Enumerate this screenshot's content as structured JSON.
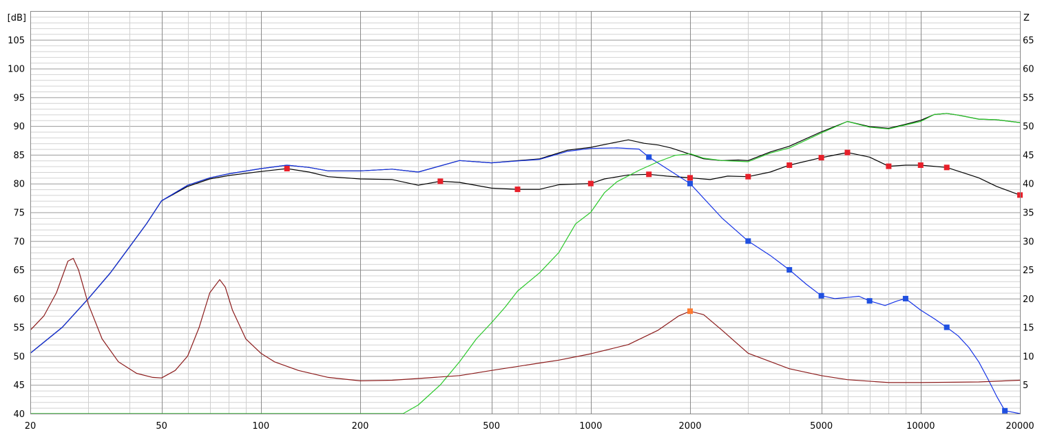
{
  "chart_data": {
    "type": "line",
    "x_scale": "log",
    "grid": true,
    "legend": "none",
    "title": "",
    "xlim": [
      20,
      20000
    ],
    "ylim_left": [
      40,
      110
    ],
    "ylim_right": [
      0,
      70
    ],
    "left_axis_label": "[dB]",
    "right_axis_label": "Z",
    "x_ticks": [
      {
        "value": 20,
        "label": "20"
      },
      {
        "value": 50,
        "label": "50"
      },
      {
        "value": 100,
        "label": "100"
      },
      {
        "value": 200,
        "label": "200"
      },
      {
        "value": 500,
        "label": "500"
      },
      {
        "value": 1000,
        "label": "1000"
      },
      {
        "value": 2000,
        "label": "2000"
      },
      {
        "value": 5000,
        "label": "5000"
      },
      {
        "value": 10000,
        "label": "10000"
      },
      {
        "value": 20000,
        "label": "20000"
      }
    ],
    "y_ticks_left": [
      "105",
      "100",
      "95",
      "90",
      "85",
      "80",
      "75",
      "70",
      "65",
      "60",
      "55",
      "50",
      "45",
      "40"
    ],
    "y_ticks_right": [
      "65",
      "60",
      "55",
      "50",
      "45",
      "40",
      "35",
      "30",
      "25",
      "20",
      "15",
      "10",
      "5"
    ],
    "series": [
      {
        "id": "sum-on-axis",
        "axis": "left",
        "color": "#000000",
        "markers": null,
        "points": [
          [
            20,
            50.5
          ],
          [
            25,
            55
          ],
          [
            30,
            60
          ],
          [
            35,
            64.5
          ],
          [
            40,
            69
          ],
          [
            45,
            73
          ],
          [
            50,
            77
          ],
          [
            60,
            79.7
          ],
          [
            70,
            81
          ],
          [
            80,
            81.7
          ],
          [
            100,
            82.6
          ],
          [
            120,
            83.2
          ],
          [
            140,
            82.8
          ],
          [
            160,
            82.2
          ],
          [
            200,
            82.2
          ],
          [
            250,
            82.5
          ],
          [
            300,
            82
          ],
          [
            400,
            84
          ],
          [
            500,
            83.6
          ],
          [
            700,
            84.3
          ],
          [
            850,
            85.8
          ],
          [
            1000,
            86.3
          ],
          [
            1150,
            87
          ],
          [
            1300,
            87.6
          ],
          [
            1450,
            87
          ],
          [
            1600,
            86.7
          ],
          [
            1750,
            86.2
          ],
          [
            2000,
            85.1
          ],
          [
            2200,
            84.3
          ],
          [
            2500,
            84
          ],
          [
            2800,
            84.1
          ],
          [
            3000,
            84
          ],
          [
            3500,
            85.5
          ],
          [
            4000,
            86.5
          ],
          [
            5000,
            89
          ],
          [
            6000,
            90.8
          ],
          [
            7000,
            89.9
          ],
          [
            8000,
            89.6
          ],
          [
            9000,
            90.3
          ],
          [
            10000,
            91
          ],
          [
            11000,
            92
          ],
          [
            12000,
            92.2
          ],
          [
            13000,
            91.9
          ],
          [
            15000,
            91.2
          ],
          [
            17000,
            91.1
          ],
          [
            20000,
            90.6
          ]
        ]
      },
      {
        "id": "sum-off-axis",
        "axis": "left",
        "color": "#000000",
        "markers": "#e8202a",
        "points": [
          [
            20,
            50.5
          ],
          [
            25,
            55
          ],
          [
            30,
            60
          ],
          [
            35,
            64.5
          ],
          [
            40,
            69
          ],
          [
            45,
            73
          ],
          [
            50,
            77
          ],
          [
            60,
            79.5
          ],
          [
            70,
            80.8
          ],
          [
            80,
            81.4
          ],
          [
            100,
            82.1
          ],
          [
            120,
            82.6
          ],
          [
            140,
            82
          ],
          [
            160,
            81.2
          ],
          [
            200,
            80.8
          ],
          [
            250,
            80.7
          ],
          [
            300,
            79.7
          ],
          [
            350,
            80.4
          ],
          [
            400,
            80.2
          ],
          [
            500,
            79.2
          ],
          [
            600,
            79
          ],
          [
            700,
            79
          ],
          [
            800,
            79.8
          ],
          [
            1000,
            80
          ],
          [
            1100,
            80.8
          ],
          [
            1300,
            81.5
          ],
          [
            1500,
            81.6
          ],
          [
            1700,
            81.3
          ],
          [
            2000,
            81
          ],
          [
            2300,
            80.7
          ],
          [
            2600,
            81.3
          ],
          [
            3000,
            81.2
          ],
          [
            3500,
            82
          ],
          [
            4000,
            83.2
          ],
          [
            5000,
            84.5
          ],
          [
            6000,
            85.4
          ],
          [
            7000,
            84.6
          ],
          [
            8000,
            83
          ],
          [
            9000,
            83.2
          ],
          [
            10000,
            83.2
          ],
          [
            12000,
            82.8
          ],
          [
            15000,
            81
          ],
          [
            17000,
            79.5
          ],
          [
            20000,
            78
          ]
        ],
        "marker_points": [
          [
            120,
            82.6
          ],
          [
            350,
            80.4
          ],
          [
            600,
            79
          ],
          [
            1000,
            80
          ],
          [
            1500,
            81.6
          ],
          [
            2000,
            81
          ],
          [
            3000,
            81.2
          ],
          [
            4000,
            83.2
          ],
          [
            5000,
            84.5
          ],
          [
            6000,
            85.4
          ],
          [
            8000,
            83
          ],
          [
            10000,
            83.2
          ],
          [
            12000,
            82.8
          ],
          [
            20000,
            78
          ]
        ]
      },
      {
        "id": "woofer",
        "axis": "left",
        "color": "#1432e6",
        "markers": "#2050e0",
        "points": [
          [
            20,
            50.5
          ],
          [
            25,
            55
          ],
          [
            30,
            60
          ],
          [
            35,
            64.5
          ],
          [
            40,
            69
          ],
          [
            45,
            73
          ],
          [
            50,
            77
          ],
          [
            60,
            79.7
          ],
          [
            70,
            81
          ],
          [
            80,
            81.7
          ],
          [
            100,
            82.6
          ],
          [
            120,
            83.2
          ],
          [
            140,
            82.8
          ],
          [
            160,
            82.2
          ],
          [
            200,
            82.2
          ],
          [
            250,
            82.5
          ],
          [
            300,
            82
          ],
          [
            400,
            84
          ],
          [
            500,
            83.6
          ],
          [
            700,
            84.2
          ],
          [
            850,
            85.6
          ],
          [
            1000,
            86.1
          ],
          [
            1200,
            86.2
          ],
          [
            1400,
            86
          ],
          [
            1500,
            84.6
          ],
          [
            1700,
            82.6
          ],
          [
            2000,
            80
          ],
          [
            2500,
            74
          ],
          [
            3000,
            70
          ],
          [
            3500,
            67.5
          ],
          [
            4000,
            65
          ],
          [
            4500,
            62.5
          ],
          [
            5000,
            60.5
          ],
          [
            5500,
            60
          ],
          [
            6000,
            60.2
          ],
          [
            6500,
            60.4
          ],
          [
            7000,
            59.6
          ],
          [
            7800,
            58.8
          ],
          [
            8500,
            59.6
          ],
          [
            9000,
            60
          ],
          [
            10000,
            58
          ],
          [
            11000,
            56.5
          ],
          [
            12000,
            55
          ],
          [
            13000,
            53.5
          ],
          [
            14000,
            51.5
          ],
          [
            15000,
            49
          ],
          [
            16000,
            46
          ],
          [
            17000,
            43
          ],
          [
            18000,
            40.5
          ],
          [
            20000,
            40
          ]
        ],
        "marker_points": [
          [
            1500,
            84.6
          ],
          [
            2000,
            80
          ],
          [
            3000,
            70
          ],
          [
            4000,
            65
          ],
          [
            5000,
            60.5
          ],
          [
            7000,
            59.6
          ],
          [
            9000,
            60
          ],
          [
            12000,
            55
          ],
          [
            18000,
            40.5
          ]
        ]
      },
      {
        "id": "tweeter",
        "axis": "left",
        "color": "#28c828",
        "markers": null,
        "points": [
          [
            20,
            40
          ],
          [
            100,
            40
          ],
          [
            270,
            40
          ],
          [
            300,
            41.5
          ],
          [
            350,
            45
          ],
          [
            400,
            49
          ],
          [
            450,
            53
          ],
          [
            500,
            55.8
          ],
          [
            550,
            58.5
          ],
          [
            600,
            61.3
          ],
          [
            700,
            64.5
          ],
          [
            800,
            68
          ],
          [
            900,
            73
          ],
          [
            1000,
            75
          ],
          [
            1100,
            78.4
          ],
          [
            1200,
            80.3
          ],
          [
            1400,
            82.3
          ],
          [
            1600,
            83.8
          ],
          [
            1800,
            84.9
          ],
          [
            2000,
            85.2
          ],
          [
            2200,
            84.4
          ],
          [
            2500,
            84
          ],
          [
            3000,
            83.8
          ],
          [
            3500,
            85.3
          ],
          [
            4000,
            86.2
          ],
          [
            5000,
            88.8
          ],
          [
            6000,
            90.8
          ],
          [
            7000,
            89.8
          ],
          [
            8000,
            89.5
          ],
          [
            9000,
            90.2
          ],
          [
            10000,
            90.8
          ],
          [
            11000,
            92
          ],
          [
            12000,
            92.2
          ],
          [
            13000,
            91.9
          ],
          [
            15000,
            91.2
          ],
          [
            17000,
            91.1
          ],
          [
            20000,
            90.6
          ]
        ]
      },
      {
        "id": "impedance",
        "axis": "right",
        "color": "#8b1a1a",
        "markers": "#ff7a30",
        "points": [
          [
            20,
            14.5
          ],
          [
            22,
            17
          ],
          [
            24,
            21
          ],
          [
            26,
            26.5
          ],
          [
            27,
            27
          ],
          [
            28,
            25
          ],
          [
            30,
            19
          ],
          [
            33,
            13
          ],
          [
            37,
            9
          ],
          [
            42,
            7
          ],
          [
            47,
            6.3
          ],
          [
            50,
            6.2
          ],
          [
            55,
            7.5
          ],
          [
            60,
            10
          ],
          [
            65,
            15
          ],
          [
            70,
            21
          ],
          [
            75,
            23.3
          ],
          [
            78,
            22
          ],
          [
            82,
            18
          ],
          [
            90,
            13
          ],
          [
            100,
            10.5
          ],
          [
            110,
            9
          ],
          [
            130,
            7.5
          ],
          [
            160,
            6.3
          ],
          [
            200,
            5.7
          ],
          [
            250,
            5.8
          ],
          [
            300,
            6.1
          ],
          [
            400,
            6.6
          ],
          [
            500,
            7.5
          ],
          [
            700,
            8.8
          ],
          [
            800,
            9.3
          ],
          [
            1000,
            10.4
          ],
          [
            1300,
            12
          ],
          [
            1600,
            14.5
          ],
          [
            1850,
            17
          ],
          [
            2000,
            17.8
          ],
          [
            2200,
            17.2
          ],
          [
            2500,
            14.5
          ],
          [
            3000,
            10.5
          ],
          [
            4000,
            7.8
          ],
          [
            5000,
            6.6
          ],
          [
            6000,
            5.9
          ],
          [
            8000,
            5.4
          ],
          [
            10000,
            5.4
          ],
          [
            15000,
            5.5
          ],
          [
            20000,
            5.8
          ]
        ],
        "marker_points": [
          [
            2000,
            17.8
          ]
        ]
      }
    ]
  }
}
